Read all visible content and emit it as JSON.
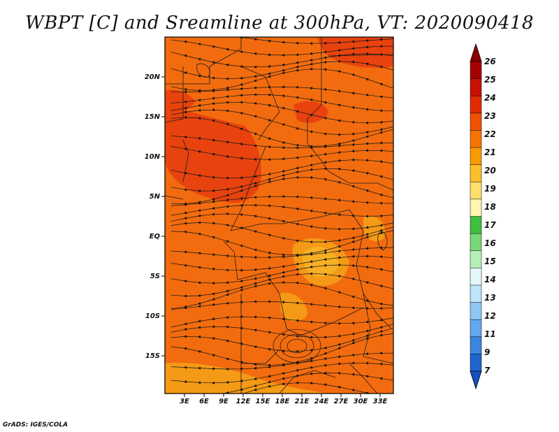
{
  "title": "WBPT [C] and Sreamline at 300hPa, VT: 2020090418",
  "credit": "GrADS: IGES/COLA",
  "lat_labels": [
    "20N",
    "15N",
    "10N",
    "5N",
    "EQ",
    "5S",
    "10S",
    "15S"
  ],
  "lon_labels": [
    "3E",
    "6E",
    "9E",
    "12E",
    "15E",
    "18E",
    "21E",
    "24E",
    "27E",
    "30E",
    "33E"
  ],
  "colorbar": {
    "labels": [
      "26",
      "25",
      "24",
      "23",
      "22",
      "21",
      "20",
      "19",
      "18",
      "17",
      "16",
      "15",
      "14",
      "13",
      "12",
      "11",
      "9",
      "7"
    ],
    "colors": [
      "#a50000",
      "#c80f00",
      "#e12a00",
      "#f05000",
      "#f57300",
      "#f99a00",
      "#fbbf2a",
      "#fde06a",
      "#fff6b0",
      "#3fbf3f",
      "#78d878",
      "#b6efb6",
      "#e6f7fb",
      "#bde4f8",
      "#8ec7f2",
      "#63a8ea",
      "#3d86de",
      "#1f63cf"
    ],
    "top_arrow_color": "#8a0000",
    "bottom_arrow_color": "#1650c0"
  },
  "field_colors": {
    "base": "#f26c0f",
    "warm": "#e8430f",
    "cool": "#f59a16",
    "coolest": "#f7b023"
  }
}
